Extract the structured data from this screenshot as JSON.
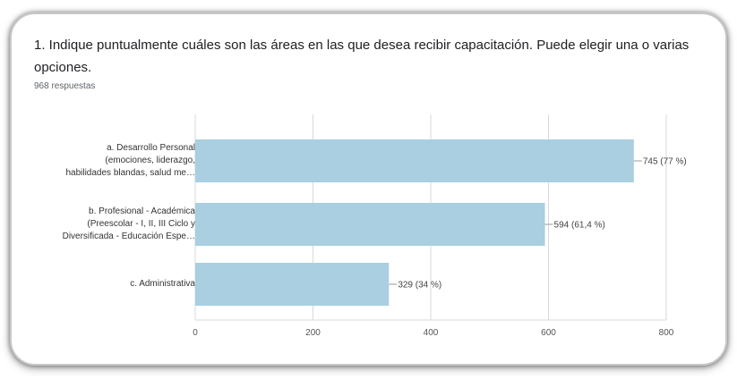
{
  "question": {
    "title": "1. Indique puntualmente cuáles son las áreas en las que desea recibir capacitación. Puede elegir una o varias opciones.",
    "response_count": "968 respuestas"
  },
  "colors": {
    "bar": "#a9cfe0",
    "grid": "#d9d9d9",
    "axis_text": "#555555",
    "leader": "#999999"
  },
  "chart_data": {
    "type": "bar",
    "orientation": "horizontal",
    "categories": [
      [
        "a. Desarrollo Personal",
        "(emociones, liderazgo,",
        "habilidades blandas, salud me…"
      ],
      [
        "b. Profesional - Académica",
        "(Preescolar - I, II, III Ciclo y",
        "Diversificada - Educación Espe…"
      ],
      [
        "c. Administrativa"
      ]
    ],
    "values": [
      745,
      594,
      329
    ],
    "value_labels": [
      "745 (77 %)",
      "594 (61,4 %)",
      "329 (34 %)"
    ],
    "xlim": [
      0,
      800
    ],
    "xticks": [
      "0",
      "200",
      "400",
      "600",
      "800"
    ],
    "grid": true,
    "title": "",
    "xlabel": "",
    "ylabel": ""
  }
}
